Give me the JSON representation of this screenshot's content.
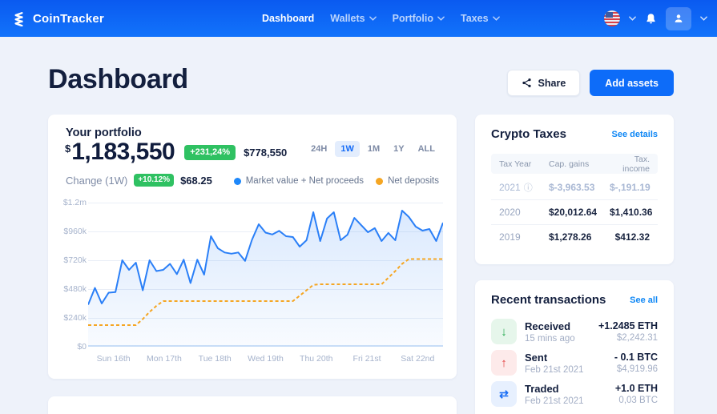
{
  "nav": {
    "brand": "CoinTracker",
    "items": [
      {
        "label": "Dashboard",
        "active": true
      },
      {
        "label": "Wallets",
        "chevron": true
      },
      {
        "label": "Portfolio",
        "chevron": true
      },
      {
        "label": "Taxes",
        "chevron": true
      }
    ]
  },
  "header": {
    "title": "Dashboard",
    "share_label": "Share",
    "add_assets_label": "Add assets"
  },
  "portfolio": {
    "title": "Your portfolio",
    "currency_symbol": "$",
    "value": "1,183,550",
    "change_pct_badge": "+231,24%",
    "change_abs": "$778,550",
    "range_options": [
      "24H",
      "1W",
      "1M",
      "1Y",
      "ALL"
    ],
    "selected_range": "1W",
    "change_label": "Change (1W)",
    "change_week_badge": "+10.12%",
    "change_week_value": "$68.25",
    "legend": [
      {
        "label": "Market value + Net proceeds",
        "color": "#1e88fa"
      },
      {
        "label": "Net deposits",
        "color": "#f5a623"
      }
    ]
  },
  "chart_data": {
    "type": "line",
    "title": "Portfolio value over 1 week",
    "x_tick_labels": [
      "Sun 16th",
      "Mon 17th",
      "Tue 18th",
      "Wed 19th",
      "Thu 20th",
      "Fri 21st",
      "Sat 22nd"
    ],
    "y_tick_labels": [
      "$1.2m",
      "$960k",
      "$720k",
      "$480k",
      "$240k",
      "$0"
    ],
    "ylim_k": [
      0,
      1200
    ],
    "grid": true,
    "legend_position": "top-right",
    "series": [
      {
        "name": "Market value + Net proceeds",
        "color": "#2a7ff7",
        "style": "solid",
        "area": true,
        "values_k": [
          350,
          490,
          360,
          450,
          455,
          720,
          640,
          700,
          470,
          720,
          630,
          640,
          690,
          605,
          725,
          530,
          725,
          600,
          920,
          820,
          785,
          775,
          785,
          715,
          890,
          1020,
          950,
          935,
          965,
          920,
          913,
          833,
          887,
          1120,
          880,
          1067,
          1120,
          887,
          933,
          1073,
          1013,
          953,
          987,
          880,
          947,
          887,
          1133,
          1080,
          1000,
          967,
          980,
          880,
          1033
        ]
      },
      {
        "name": "Net deposits",
        "color": "#f5a623",
        "style": "dashed",
        "area": false,
        "values_k": [
          180,
          180,
          180,
          180,
          180,
          180,
          180,
          180,
          230,
          290,
          340,
          380,
          380,
          380,
          380,
          380,
          380,
          380,
          380,
          380,
          380,
          380,
          380,
          380,
          380,
          380,
          380,
          380,
          380,
          380,
          380,
          425,
          470,
          515,
          520,
          520,
          520,
          520,
          520,
          520,
          520,
          520,
          520,
          520,
          575,
          630,
          690,
          730,
          730,
          730,
          730,
          730,
          730
        ]
      }
    ]
  },
  "crypto_taxes": {
    "title": "Crypto Taxes",
    "link": "See details",
    "columns": [
      "Tax Year",
      "Cap. gains",
      "Tax. income"
    ],
    "rows": [
      {
        "year": "2021",
        "cap_gains": "$-3,963.53",
        "tax_income": "$-,191.19"
      },
      {
        "year": "2020",
        "cap_gains": "$20,012.64",
        "tax_income": "$1,410.36"
      },
      {
        "year": "2019",
        "cap_gains": "$1,278.26",
        "tax_income": "$412.32"
      }
    ]
  },
  "recent_transactions": {
    "title": "Recent transactions",
    "link": "See all",
    "items": [
      {
        "type": "Received",
        "time": "15 mins ago",
        "amount": "+1.2485 ETH",
        "secondary": "$2,242.31",
        "icon": "arrow-down",
        "glyph": "↓"
      },
      {
        "type": "Sent",
        "time": "Feb 21st 2021",
        "amount": "- 0.1 BTC",
        "secondary": "$4,919.96",
        "icon": "arrow-up",
        "glyph": "↑"
      },
      {
        "type": "Traded",
        "time": "Feb 21st 2021",
        "amount": "+1.0 ETH",
        "secondary": "0,03 BTC",
        "icon": "swap",
        "glyph": "⇄"
      }
    ]
  },
  "colors": {
    "navbar_blue": "#0d6cf9",
    "accent_blue": "#0d6cf9",
    "link_blue": "#0f87f5",
    "positive_green": "#2fc162",
    "negative_red": "#e23b3b",
    "deposits_orange": "#f5a623",
    "page_background": "#eef2fa"
  }
}
